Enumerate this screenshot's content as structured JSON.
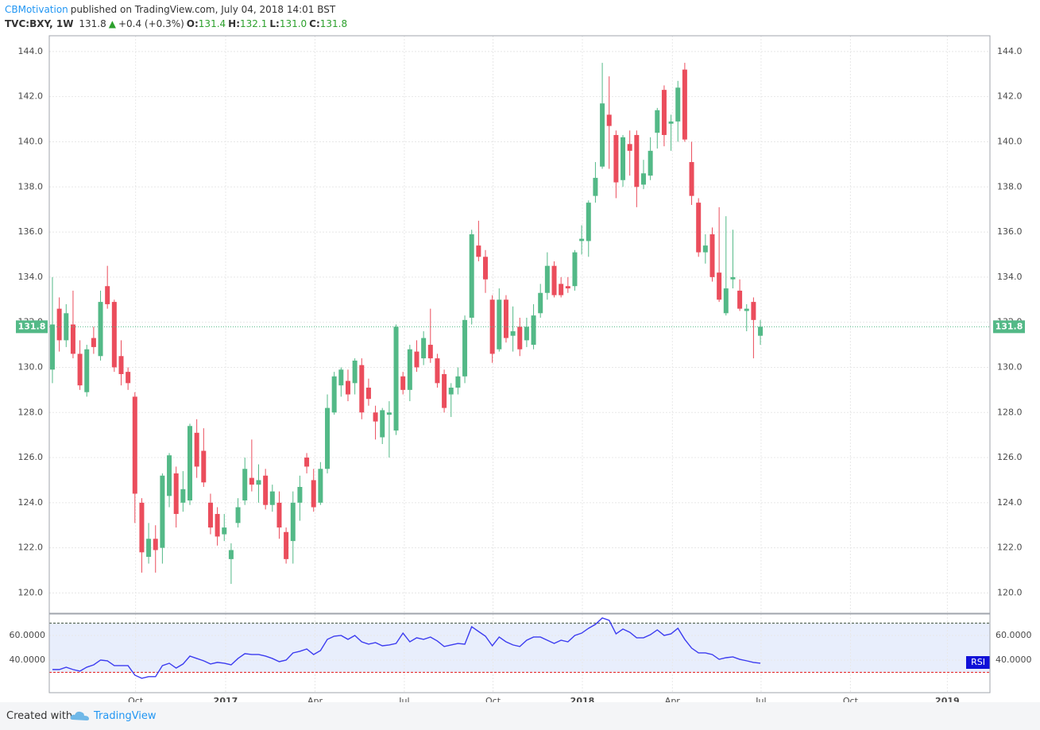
{
  "header": {
    "author": "CBMotivation",
    "published": "published on TradingView.com, July 04, 2018 14:01 BST",
    "symbol": "TVC:BXY, 1W",
    "last": "131.8",
    "arrow": "▲",
    "change": "+0.4 (+0.3%)",
    "ohlc": [
      {
        "label": "O:",
        "value": "131.4"
      },
      {
        "label": "H:",
        "value": "132.1"
      },
      {
        "label": "L:",
        "value": "131.0"
      },
      {
        "label": "C:",
        "value": "131.8"
      }
    ]
  },
  "footer": {
    "created": "Created with",
    "brand": "TradingView"
  },
  "chart_data": [
    {
      "type": "candlestick",
      "up_color": "#53b987",
      "down_color": "#eb4d5c",
      "grid": true,
      "xlim": [
        -0.46,
        136.4
      ],
      "xticks": [
        {
          "value": 12.1,
          "label": "Oct"
        },
        {
          "value": 25.2,
          "label": "2017"
        },
        {
          "value": 38.2,
          "label": "Apr"
        },
        {
          "value": 51.2,
          "label": "Jul"
        },
        {
          "value": 64.1,
          "label": "Oct"
        },
        {
          "value": 77.1,
          "label": "2018"
        },
        {
          "value": 90.2,
          "label": "Apr"
        },
        {
          "value": 103.1,
          "label": "Jul"
        },
        {
          "value": 116.1,
          "label": "Oct"
        },
        {
          "value": 130.2,
          "label": "2019"
        }
      ],
      "ylim": [
        119.1,
        144.7
      ],
      "yticks": [
        {
          "value": 120,
          "label": "120.0"
        },
        {
          "value": 122,
          "label": "122.0"
        },
        {
          "value": 124,
          "label": "124.0"
        },
        {
          "value": 126,
          "label": "126.0"
        },
        {
          "value": 128,
          "label": "128.0"
        },
        {
          "value": 130,
          "label": "130.0"
        },
        {
          "value": 132,
          "label": "132.0"
        },
        {
          "value": 134,
          "label": "134.0"
        },
        {
          "value": 136,
          "label": "136.0"
        },
        {
          "value": 138,
          "label": "138.0"
        },
        {
          "value": 140,
          "label": "140.0"
        },
        {
          "value": 142,
          "label": "142.0"
        },
        {
          "value": 144,
          "label": "144.0"
        }
      ],
      "open": [
        129.9,
        132.6,
        131.2,
        131.9,
        130.6,
        128.9,
        131.3,
        130.5,
        133.6,
        132.9,
        130.5,
        129.8,
        128.7,
        124.0,
        121.6,
        122.4,
        122.0,
        124.3,
        125.3,
        124.0,
        124.1,
        127.1,
        126.3,
        124.0,
        123.5,
        122.6,
        121.5,
        123.1,
        124.1,
        125.1,
        124.8,
        125.2,
        123.9,
        124.0,
        122.7,
        122.3,
        124.0,
        126.0,
        125.0,
        124.0,
        125.5,
        128.0,
        129.2,
        129.4,
        129.3,
        130.1,
        129.1,
        128.0,
        126.9,
        127.9,
        127.2,
        129.6,
        129.0,
        130.7,
        130.4,
        131.0,
        130.4,
        129.7,
        128.8,
        129.1,
        129.6,
        132.2,
        135.4,
        134.9,
        133.0,
        130.8,
        133.0,
        131.4,
        131.8,
        131.2,
        131.0,
        132.4,
        133.3,
        134.5,
        133.7,
        133.6,
        133.6,
        135.6,
        135.6,
        137.6,
        138.9,
        141.2,
        140.3,
        138.3,
        139.9,
        140.3,
        138.1,
        138.5,
        140.4,
        142.3,
        140.8,
        140.9,
        143.2,
        139.1,
        137.3,
        135.1,
        135.9,
        134.2,
        132.4,
        133.9,
        133.4,
        132.5,
        132.9,
        131.4
      ],
      "high": [
        134.0,
        133.1,
        132.8,
        133.4,
        131.2,
        131.0,
        131.8,
        133.4,
        134.5,
        133.0,
        131.2,
        130.0,
        128.9,
        124.2,
        123.1,
        123.0,
        125.3,
        126.2,
        125.6,
        125.4,
        127.5,
        127.7,
        127.3,
        124.4,
        123.8,
        123.5,
        122.2,
        124.2,
        126.0,
        126.8,
        125.7,
        125.5,
        124.8,
        124.5,
        122.9,
        124.5,
        125.2,
        126.2,
        125.5,
        125.8,
        128.8,
        129.8,
        130.0,
        129.9,
        130.4,
        130.4,
        129.5,
        128.3,
        128.2,
        128.5,
        131.9,
        129.8,
        131.0,
        131.2,
        131.6,
        132.6,
        130.6,
        129.9,
        129.3,
        130.0,
        132.3,
        136.1,
        136.5,
        135.2,
        133.2,
        133.5,
        133.2,
        132.7,
        132.2,
        132.2,
        132.8,
        133.7,
        135.1,
        134.7,
        134.0,
        134.0,
        135.2,
        136.3,
        137.4,
        139.1,
        143.5,
        142.9,
        140.5,
        140.3,
        140.5,
        140.5,
        139.2,
        140.2,
        141.5,
        142.5,
        141.2,
        142.7,
        143.5,
        140.0,
        137.5,
        135.9,
        136.2,
        137.1,
        136.7,
        136.1,
        133.9,
        132.8,
        133.1,
        132.1
      ],
      "low": [
        129.3,
        130.7,
        130.9,
        130.4,
        129.0,
        128.7,
        130.6,
        130.3,
        132.6,
        129.8,
        129.2,
        129.0,
        123.1,
        120.9,
        121.3,
        120.9,
        121.3,
        123.8,
        122.9,
        123.6,
        123.9,
        125.1,
        124.7,
        122.6,
        122.1,
        122.3,
        120.4,
        122.9,
        123.9,
        124.5,
        124.0,
        123.7,
        123.6,
        122.4,
        121.3,
        121.3,
        123.2,
        125.3,
        123.6,
        123.9,
        125.3,
        127.9,
        128.7,
        128.5,
        128.8,
        127.7,
        128.3,
        126.8,
        126.6,
        126.0,
        127.0,
        128.8,
        128.5,
        129.8,
        130.1,
        130.2,
        129.1,
        128.0,
        127.8,
        128.8,
        129.3,
        131.9,
        134.7,
        133.3,
        130.2,
        130.7,
        131.1,
        130.7,
        130.5,
        130.9,
        130.8,
        132.2,
        133.0,
        133.1,
        133.1,
        133.3,
        133.4,
        135.0,
        134.9,
        137.3,
        138.8,
        138.8,
        137.5,
        138.0,
        138.5,
        137.1,
        137.9,
        138.3,
        139.7,
        139.8,
        139.6,
        140.0,
        140.0,
        137.2,
        134.9,
        134.6,
        133.8,
        132.9,
        132.3,
        133.5,
        132.5,
        131.6,
        130.4,
        131.0
      ],
      "close": [
        131.9,
        131.2,
        132.4,
        130.6,
        129.2,
        130.8,
        130.9,
        132.9,
        132.8,
        130.0,
        129.7,
        129.3,
        124.4,
        121.8,
        122.4,
        121.9,
        125.2,
        126.1,
        123.5,
        124.6,
        127.4,
        125.6,
        124.9,
        122.9,
        122.5,
        122.9,
        121.9,
        123.8,
        125.5,
        124.8,
        125.0,
        123.9,
        124.5,
        122.9,
        121.5,
        124.0,
        124.7,
        125.6,
        123.8,
        125.5,
        128.2,
        129.6,
        129.9,
        128.8,
        130.3,
        128.0,
        128.6,
        127.6,
        128.1,
        128.0,
        131.8,
        129.0,
        130.8,
        130.0,
        131.3,
        130.4,
        129.3,
        128.2,
        129.1,
        129.6,
        132.1,
        135.9,
        134.9,
        133.9,
        130.6,
        133.0,
        131.3,
        131.6,
        130.8,
        131.8,
        132.3,
        133.3,
        134.5,
        133.2,
        133.2,
        133.5,
        135.1,
        135.7,
        137.3,
        138.4,
        141.7,
        140.7,
        138.2,
        140.2,
        139.6,
        138.0,
        138.6,
        139.6,
        141.4,
        140.3,
        140.9,
        142.4,
        140.1,
        137.6,
        135.1,
        135.4,
        134.0,
        133.0,
        133.5,
        134.0,
        132.6,
        132.6,
        132.1,
        131.8
      ]
    },
    {
      "type": "line",
      "ylim": [
        13.5,
        77.4
      ],
      "yticks": [
        {
          "value": 60,
          "label": "60.0000"
        },
        {
          "value": 40,
          "label": "40.0000"
        }
      ],
      "bands": [
        70,
        30
      ],
      "series": [
        {
          "name": "RSI",
          "color": "#3c3cf0",
          "values": [
            32.3,
            32.3,
            34.2,
            32.3,
            31.0,
            34.2,
            36.1,
            40.0,
            39.4,
            35.5,
            35.5,
            35.5,
            27.7,
            25.2,
            26.5,
            26.5,
            35.5,
            37.4,
            33.5,
            36.8,
            43.2,
            41.3,
            39.4,
            36.8,
            38.1,
            37.4,
            36.1,
            41.3,
            45.2,
            44.5,
            44.5,
            43.2,
            41.3,
            38.7,
            40.0,
            45.8,
            47.1,
            49.0,
            44.5,
            47.7,
            56.8,
            59.4,
            60.0,
            56.8,
            60.0,
            54.8,
            52.9,
            54.2,
            51.6,
            52.3,
            53.5,
            61.9,
            54.8,
            58.1,
            56.8,
            58.7,
            55.5,
            51.0,
            52.3,
            53.5,
            52.9,
            67.1,
            63.2,
            59.4,
            51.6,
            58.7,
            54.8,
            52.3,
            51.0,
            56.1,
            58.7,
            58.7,
            56.1,
            53.5,
            56.1,
            54.8,
            60.0,
            61.9,
            65.8,
            69.0,
            74.2,
            72.3,
            61.3,
            65.2,
            62.6,
            58.1,
            58.1,
            60.6,
            64.5,
            60.0,
            61.3,
            65.8,
            56.8,
            49.7,
            45.8,
            45.8,
            44.5,
            40.6,
            41.9,
            42.6,
            40.6,
            39.4,
            38.1,
            37.4
          ]
        }
      ]
    }
  ]
}
